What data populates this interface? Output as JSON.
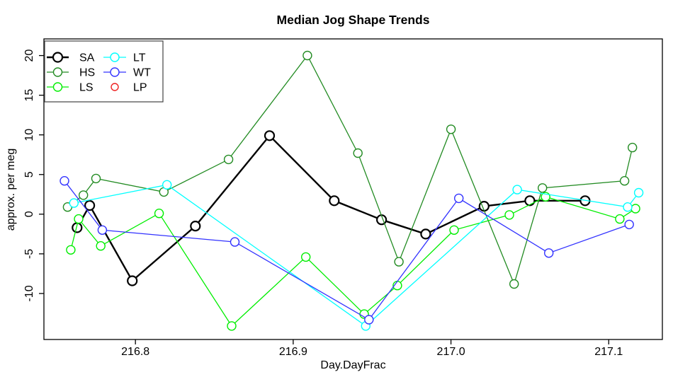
{
  "chart_data": {
    "type": "line",
    "title": "Median Jog Shape Trends",
    "xlabel": "Day.DayFrac",
    "ylabel": "approx. per meg",
    "xlim": [
      216.742,
      217.134
    ],
    "ylim": [
      -15.8,
      22.1
    ],
    "x_tick_values": [
      216.8,
      216.9,
      217.0,
      217.1
    ],
    "x_tick_labels": [
      "216.8",
      "216.9",
      "217.0",
      "217.1"
    ],
    "y_tick_values": [
      -10,
      -5,
      0,
      5,
      10,
      15,
      20
    ],
    "y_tick_labels": [
      "-10",
      "-5",
      "0",
      "5",
      "10",
      "15",
      "20"
    ],
    "grid": false,
    "plot_border": true,
    "marker": "open-circle",
    "legend": {
      "position": "topleft",
      "columns": 2,
      "order": [
        "SA",
        "HS",
        "LS",
        "LT",
        "WT",
        "LP"
      ]
    },
    "series": [
      {
        "name": "SA",
        "color": "#000000",
        "line_width": 2.4,
        "marker_radius": 6.5,
        "marker_stroke": 2.2,
        "has_line": true,
        "points": [
          [
            216.763,
            -1.7
          ],
          [
            216.771,
            1.1
          ],
          [
            216.798,
            -8.4
          ],
          [
            216.838,
            -1.5
          ],
          [
            216.885,
            9.9
          ],
          [
            216.926,
            1.7
          ],
          [
            216.956,
            -0.7
          ],
          [
            216.984,
            -2.5
          ],
          [
            217.021,
            1.0
          ],
          [
            217.05,
            1.7
          ],
          [
            217.085,
            1.7
          ]
        ]
      },
      {
        "name": "HS",
        "color": "#228B22",
        "line_width": 1.3,
        "marker_radius": 6,
        "marker_stroke": 1.4,
        "has_line": true,
        "points": [
          [
            216.757,
            0.9
          ],
          [
            216.767,
            2.4
          ],
          [
            216.775,
            4.5
          ],
          [
            216.818,
            2.8
          ],
          [
            216.859,
            6.9
          ],
          [
            216.909,
            20.0
          ],
          [
            216.941,
            7.7
          ],
          [
            216.967,
            -6.0
          ],
          [
            217.0,
            10.7
          ],
          [
            217.04,
            -8.8
          ],
          [
            217.058,
            3.3
          ],
          [
            217.11,
            4.2
          ],
          [
            217.115,
            8.4
          ]
        ]
      },
      {
        "name": "LS",
        "color": "#00EE00",
        "line_width": 1.3,
        "marker_radius": 6,
        "marker_stroke": 1.4,
        "has_line": true,
        "points": [
          [
            216.759,
            -4.5
          ],
          [
            216.764,
            -0.6
          ],
          [
            216.778,
            -4.0
          ],
          [
            216.815,
            0.1
          ],
          [
            216.861,
            -14.1
          ],
          [
            216.908,
            -5.4
          ],
          [
            216.945,
            -12.6
          ],
          [
            216.966,
            -9.0
          ],
          [
            217.002,
            -2.0
          ],
          [
            217.037,
            -0.1
          ],
          [
            217.06,
            2.2
          ],
          [
            217.107,
            -0.6
          ],
          [
            217.117,
            0.7
          ]
        ]
      },
      {
        "name": "LT",
        "color": "#00FFFF",
        "line_width": 1.3,
        "marker_radius": 6,
        "marker_stroke": 1.4,
        "has_line": true,
        "points": [
          [
            216.761,
            1.4
          ],
          [
            216.82,
            3.7
          ],
          [
            216.946,
            -14.1
          ],
          [
            217.042,
            3.1
          ],
          [
            217.112,
            0.9
          ],
          [
            217.119,
            2.7
          ]
        ]
      },
      {
        "name": "WT",
        "color": "#3333FF",
        "line_width": 1.3,
        "marker_radius": 6,
        "marker_stroke": 1.4,
        "has_line": true,
        "points": [
          [
            216.755,
            4.2
          ],
          [
            216.779,
            -2.0
          ],
          [
            216.863,
            -3.5
          ],
          [
            216.948,
            -13.3
          ],
          [
            217.005,
            2.0
          ],
          [
            217.062,
            -4.9
          ],
          [
            217.113,
            -1.3
          ]
        ]
      },
      {
        "name": "LP",
        "color": "#EE2222",
        "line_width": 1.3,
        "marker_radius": 5,
        "marker_stroke": 1.4,
        "has_line": false,
        "points": []
      }
    ]
  }
}
